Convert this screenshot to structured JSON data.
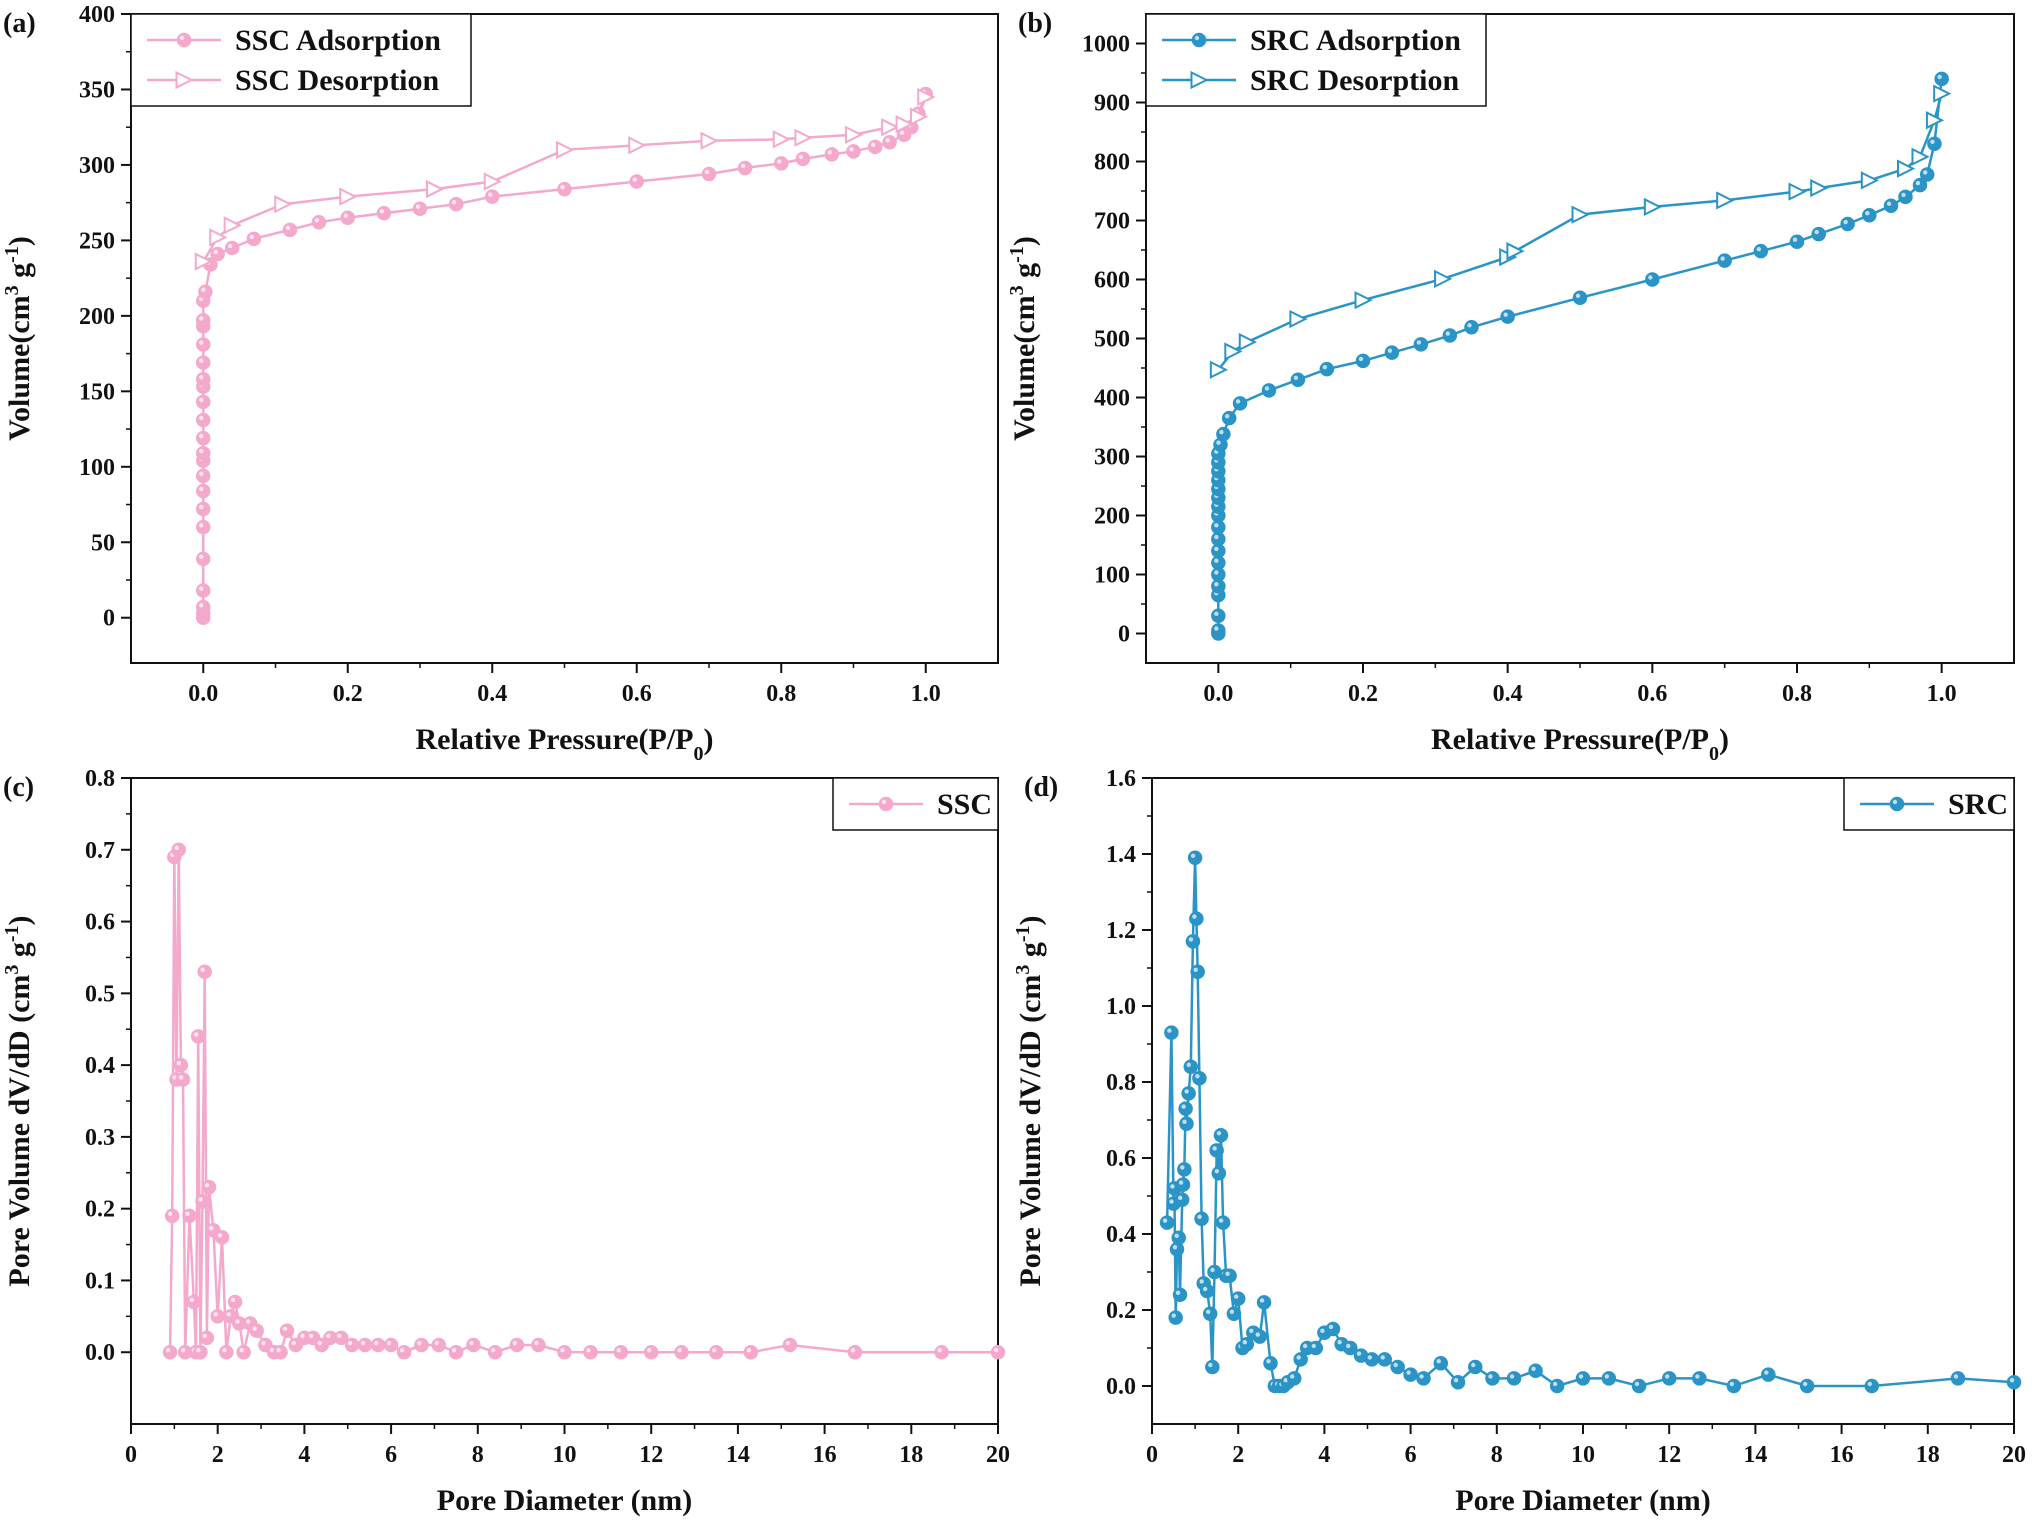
{
  "colors": {
    "ssc": "#f4a8cc",
    "src": "#2b94c6",
    "axis": "#111111"
  },
  "chart_data": [
    {
      "panel": "(a)",
      "type": "line",
      "xlabel": "Relative Pressure(P/P0)",
      "ylabel": "Volume(cm3 g-1)",
      "xlim": [
        -0.1,
        1.1
      ],
      "ylim": [
        -30,
        400
      ],
      "xticks": [
        0.0,
        0.2,
        0.4,
        0.6,
        0.8,
        1.0
      ],
      "yticks": [
        0,
        50,
        100,
        150,
        200,
        250,
        300,
        350,
        400
      ],
      "tick_decimals_x": 1,
      "tick_decimals_y": 0,
      "legend_position": "top-left",
      "series": [
        {
          "name": "SSC Adsorption",
          "color": "ssc",
          "marker": "circle",
          "x": [
            0.0,
            0.0,
            0.0,
            0.0,
            0.0,
            0.0,
            0.0,
            0.0,
            0.0,
            0.0,
            0.0,
            0.0,
            0.0,
            0.0,
            0.0,
            0.0,
            0.0,
            0.0,
            0.0,
            0.0,
            0.0,
            0.003,
            0.01,
            0.02,
            0.04,
            0.07,
            0.12,
            0.16,
            0.2,
            0.25,
            0.3,
            0.35,
            0.4,
            0.5,
            0.6,
            0.7,
            0.75,
            0.8,
            0.83,
            0.87,
            0.9,
            0.93,
            0.95,
            0.97,
            0.98,
            0.99,
            1.0
          ],
          "y": [
            0,
            3,
            7,
            18,
            39,
            60,
            72,
            84,
            94,
            104,
            109,
            119,
            131,
            143,
            153,
            158,
            169,
            181,
            193,
            197,
            210,
            216,
            234,
            241,
            245,
            251,
            257,
            262,
            265,
            268,
            271,
            274,
            279,
            284,
            289,
            294,
            298,
            301,
            304,
            307,
            309,
            312,
            315,
            320,
            325,
            334,
            347
          ]
        },
        {
          "name": "SSC Desorption",
          "color": "ssc",
          "marker": "triangle",
          "x": [
            0.0,
            0.02,
            0.04,
            0.11,
            0.2,
            0.32,
            0.4,
            0.5,
            0.6,
            0.7,
            0.8,
            0.83,
            0.9,
            0.95,
            0.97,
            0.99,
            1.0
          ],
          "y": [
            236,
            252,
            260,
            274,
            279,
            284,
            289,
            310,
            313,
            316,
            317,
            318,
            320,
            325,
            327,
            332,
            345
          ]
        }
      ]
    },
    {
      "panel": "(b)",
      "type": "line",
      "xlabel": "Relative Pressure(P/P0)",
      "ylabel": "Volume(cm3 g-1)",
      "xlim": [
        -0.1,
        1.1
      ],
      "ylim": [
        -50,
        1050
      ],
      "xticks": [
        0.0,
        0.2,
        0.4,
        0.6,
        0.8,
        1.0
      ],
      "yticks": [
        0,
        100,
        200,
        300,
        400,
        500,
        600,
        700,
        800,
        900,
        1000
      ],
      "tick_decimals_x": 1,
      "tick_decimals_y": 0,
      "legend_position": "top-left",
      "series": [
        {
          "name": "SRC Adsorption",
          "color": "src",
          "marker": "circle",
          "x": [
            0.0,
            0.0,
            0.0,
            0.0,
            0.0,
            0.0,
            0.0,
            0.0,
            0.0,
            0.0,
            0.0,
            0.0,
            0.0,
            0.0,
            0.0,
            0.0,
            0.0,
            0.0,
            0.003,
            0.007,
            0.015,
            0.03,
            0.07,
            0.11,
            0.15,
            0.2,
            0.24,
            0.28,
            0.32,
            0.35,
            0.4,
            0.5,
            0.6,
            0.7,
            0.75,
            0.8,
            0.83,
            0.87,
            0.9,
            0.93,
            0.95,
            0.97,
            0.98,
            0.99,
            1.0
          ],
          "y": [
            0,
            5,
            30,
            65,
            80,
            100,
            120,
            140,
            160,
            180,
            200,
            215,
            230,
            245,
            260,
            275,
            290,
            305,
            320,
            338,
            365,
            390,
            412,
            430,
            448,
            462,
            476,
            490,
            505,
            519,
            537,
            569,
            600,
            632,
            648,
            664,
            677,
            694,
            709,
            725,
            740,
            760,
            778,
            830,
            940
          ]
        },
        {
          "name": "SRC Desorption",
          "color": "src",
          "marker": "triangle",
          "x": [
            0.0,
            0.02,
            0.04,
            0.11,
            0.2,
            0.31,
            0.4,
            0.41,
            0.5,
            0.6,
            0.7,
            0.8,
            0.83,
            0.9,
            0.95,
            0.97,
            0.99,
            1.0
          ],
          "y": [
            447,
            478,
            494,
            533,
            565,
            601,
            638,
            648,
            710,
            723,
            734,
            749,
            755,
            768,
            788,
            808,
            870,
            915
          ]
        }
      ]
    },
    {
      "panel": "(c)",
      "type": "line",
      "xlabel": "Pore Diameter (nm)",
      "ylabel": "Pore Volume dV/dD (cm3 g-1)",
      "xlim": [
        0,
        20
      ],
      "ylim": [
        -0.1,
        0.8
      ],
      "xticks": [
        0,
        2,
        4,
        6,
        8,
        10,
        12,
        14,
        16,
        18,
        20
      ],
      "yticks": [
        0.0,
        0.1,
        0.2,
        0.3,
        0.4,
        0.5,
        0.6,
        0.7,
        0.8
      ],
      "tick_decimals_x": 0,
      "tick_decimals_y": 1,
      "legend_position": "top-right",
      "series": [
        {
          "name": "SSC",
          "color": "ssc",
          "marker": "circle",
          "x": [
            0.9,
            0.95,
            1.0,
            1.05,
            1.1,
            1.15,
            1.2,
            1.25,
            1.35,
            1.45,
            1.5,
            1.55,
            1.6,
            1.65,
            1.7,
            1.75,
            1.8,
            1.9,
            2.0,
            2.1,
            2.2,
            2.3,
            2.4,
            2.5,
            2.6,
            2.75,
            2.9,
            3.1,
            3.3,
            3.45,
            3.6,
            3.8,
            4.0,
            4.2,
            4.4,
            4.6,
            4.85,
            5.1,
            5.4,
            5.7,
            6.0,
            6.3,
            6.7,
            7.1,
            7.5,
            7.9,
            8.4,
            8.9,
            9.4,
            10.0,
            10.6,
            11.3,
            12.0,
            12.7,
            13.5,
            14.3,
            15.2,
            16.7,
            18.7,
            20.0
          ],
          "y": [
            0.0,
            0.19,
            0.69,
            0.38,
            0.7,
            0.4,
            0.38,
            0.0,
            0.19,
            0.07,
            0.0,
            0.44,
            0.0,
            0.21,
            0.53,
            0.02,
            0.23,
            0.17,
            0.05,
            0.16,
            0.0,
            0.05,
            0.07,
            0.04,
            0.0,
            0.04,
            0.03,
            0.01,
            0.0,
            0.0,
            0.03,
            0.01,
            0.02,
            0.02,
            0.01,
            0.02,
            0.02,
            0.01,
            0.01,
            0.01,
            0.01,
            0.0,
            0.01,
            0.01,
            0.0,
            0.01,
            0.0,
            0.01,
            0.01,
            0.0,
            0.0,
            0.0,
            0.0,
            0.0,
            0.0,
            0.0,
            0.01,
            0.0,
            0.0,
            0.0
          ]
        }
      ]
    },
    {
      "panel": "(d)",
      "type": "line",
      "xlabel": "Pore Diameter (nm)",
      "ylabel": "Pore Volume dV/dD (cm3 g-1)",
      "xlim": [
        0,
        20
      ],
      "ylim": [
        -0.1,
        1.6
      ],
      "xticks": [
        0,
        2,
        4,
        6,
        8,
        10,
        12,
        14,
        16,
        18,
        20
      ],
      "yticks": [
        0.0,
        0.2,
        0.4,
        0.6,
        0.8,
        1.0,
        1.2,
        1.4,
        1.6
      ],
      "tick_decimals_x": 0,
      "tick_decimals_y": 1,
      "legend_position": "top-right",
      "series": [
        {
          "name": "SRC",
          "color": "src",
          "marker": "circle",
          "x": [
            0.35,
            0.45,
            0.5,
            0.52,
            0.55,
            0.58,
            0.62,
            0.65,
            0.7,
            0.72,
            0.75,
            0.78,
            0.8,
            0.85,
            0.9,
            0.95,
            1.0,
            1.03,
            1.06,
            1.1,
            1.15,
            1.2,
            1.28,
            1.35,
            1.4,
            1.45,
            1.5,
            1.55,
            1.6,
            1.65,
            1.72,
            1.8,
            1.9,
            2.0,
            2.1,
            2.2,
            2.35,
            2.5,
            2.6,
            2.75,
            2.85,
            2.95,
            3.05,
            3.15,
            3.3,
            3.45,
            3.6,
            3.8,
            4.0,
            4.2,
            4.4,
            4.6,
            4.85,
            5.1,
            5.4,
            5.7,
            6.0,
            6.3,
            6.7,
            7.1,
            7.5,
            7.9,
            8.4,
            8.9,
            9.4,
            10.0,
            10.6,
            11.3,
            12.0,
            12.7,
            13.5,
            14.3,
            15.2,
            16.7,
            18.7,
            20.0
          ],
          "y": [
            0.43,
            0.93,
            0.48,
            0.52,
            0.18,
            0.36,
            0.39,
            0.24,
            0.49,
            0.53,
            0.57,
            0.73,
            0.69,
            0.77,
            0.84,
            1.17,
            1.39,
            1.23,
            1.09,
            0.81,
            0.44,
            0.27,
            0.25,
            0.19,
            0.05,
            0.3,
            0.62,
            0.56,
            0.66,
            0.43,
            0.29,
            0.29,
            0.19,
            0.23,
            0.1,
            0.11,
            0.14,
            0.13,
            0.22,
            0.06,
            0.0,
            0.0,
            0.0,
            0.01,
            0.02,
            0.07,
            0.1,
            0.1,
            0.14,
            0.15,
            0.11,
            0.1,
            0.08,
            0.07,
            0.07,
            0.05,
            0.03,
            0.02,
            0.06,
            0.01,
            0.05,
            0.02,
            0.02,
            0.04,
            0.0,
            0.02,
            0.02,
            0.0,
            0.02,
            0.02,
            0.0,
            0.03,
            0.0,
            0.0,
            0.02,
            0.01
          ]
        }
      ]
    }
  ]
}
